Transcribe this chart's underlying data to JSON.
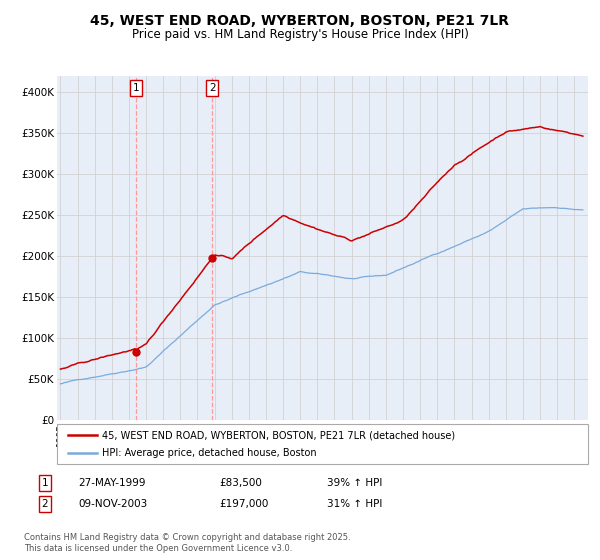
{
  "title": "45, WEST END ROAD, WYBERTON, BOSTON, PE21 7LR",
  "subtitle": "Price paid vs. HM Land Registry's House Price Index (HPI)",
  "title_fontsize": 10,
  "subtitle_fontsize": 8.5,
  "legend_label_red": "45, WEST END ROAD, WYBERTON, BOSTON, PE21 7LR (detached house)",
  "legend_label_blue": "HPI: Average price, detached house, Boston",
  "sale1_date": "27-MAY-1999",
  "sale1_price": "£83,500",
  "sale1_hpi": "39% ↑ HPI",
  "sale1_x": 1999.41,
  "sale1_price_val": 83500,
  "sale2_date": "09-NOV-2003",
  "sale2_price": "£197,000",
  "sale2_hpi": "31% ↑ HPI",
  "sale2_x": 2003.86,
  "sale2_price_val": 197000,
  "footnote": "Contains HM Land Registry data © Crown copyright and database right 2025.\nThis data is licensed under the Open Government Licence v3.0.",
  "ylim": [
    0,
    420000
  ],
  "yticks": [
    0,
    50000,
    100000,
    150000,
    200000,
    250000,
    300000,
    350000,
    400000
  ],
  "ytick_labels": [
    "£0",
    "£50K",
    "£100K",
    "£150K",
    "£200K",
    "£250K",
    "£300K",
    "£350K",
    "£400K"
  ],
  "red_color": "#cc0000",
  "blue_color": "#7aaadd",
  "grid_color": "#cccccc",
  "background_color": "#e8eef8",
  "vline_color": "#ff9999"
}
